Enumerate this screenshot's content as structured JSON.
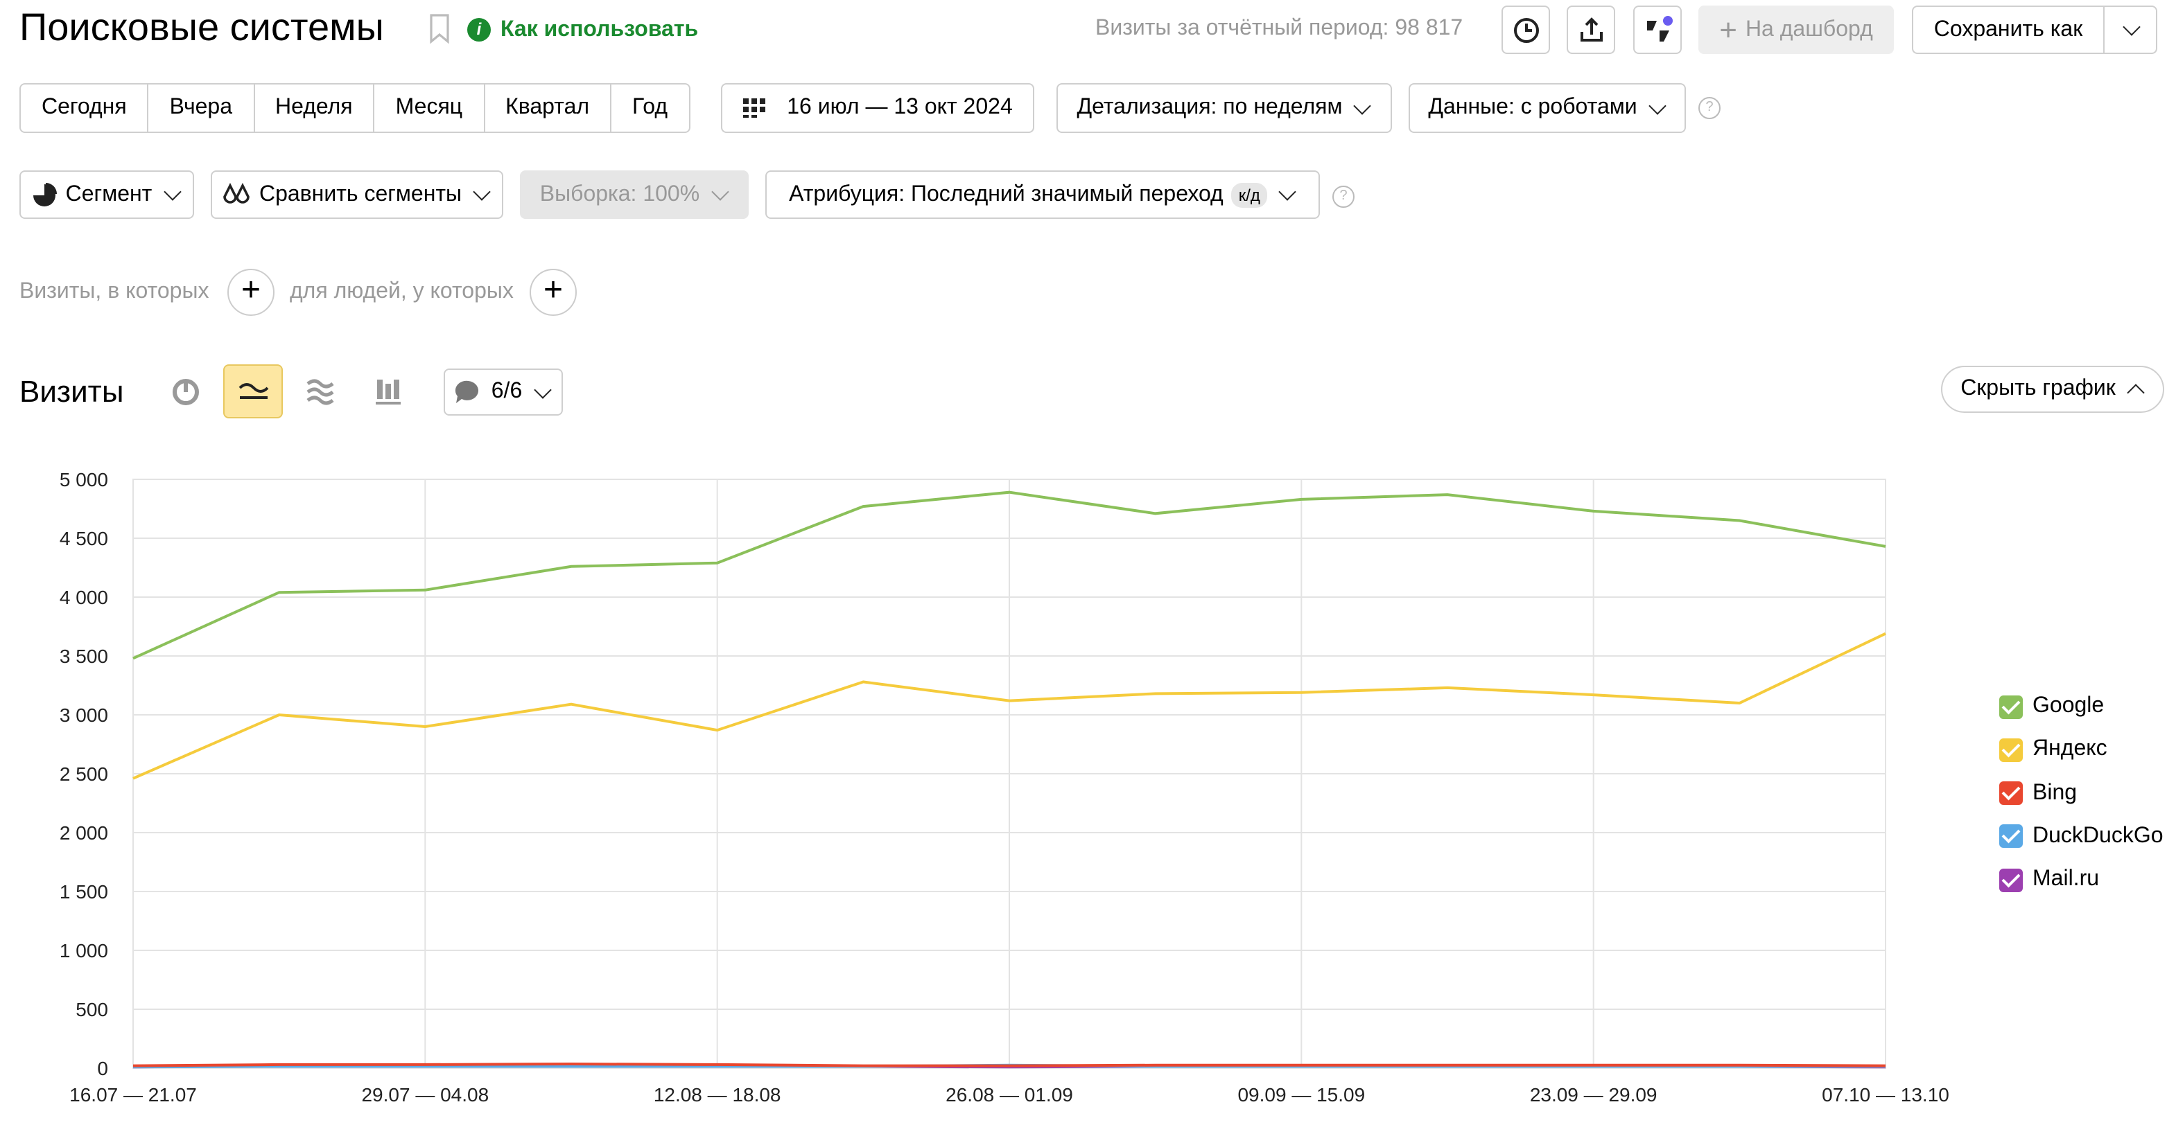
{
  "header": {
    "title": "Поисковые системы",
    "help": "Как использовать",
    "total": "Визиты за отчётный период: 98 817",
    "dashboard": "На дашборд",
    "save": "Сохранить как"
  },
  "periods": [
    "Сегодня",
    "Вчера",
    "Неделя",
    "Месяц",
    "Квартал",
    "Год"
  ],
  "filters": {
    "date": "16 июл — 13 окт 2024",
    "detail": "Детализация: по неделям",
    "robots": "Данные: с роботами",
    "segment": "Сегмент",
    "compare": "Сравнить сегменты",
    "sample": "Выборка: 100%",
    "attribution": "Атрибуция: Последний значимый переход",
    "attribution_badge": "к/д",
    "visits_where": "Визиты, в которых",
    "people_where": "для людей, у которых"
  },
  "report": {
    "title": "Визиты",
    "series_count": "6/6",
    "hide": "Скрыть график"
  },
  "chart_data": {
    "type": "line",
    "categories": [
      "16.07 — 21.07",
      null,
      "29.07 — 04.08",
      null,
      "12.08 — 18.08",
      null,
      "26.08 — 01.09",
      null,
      "09.09 — 15.09",
      null,
      "23.09 — 29.09",
      null,
      "07.10 — 13.10"
    ],
    "series": [
      {
        "name": "Google",
        "color": "#8bc05a",
        "values": [
          3480,
          4040,
          4060,
          4260,
          4290,
          4770,
          4890,
          4710,
          4830,
          4870,
          4730,
          4650,
          4430
        ]
      },
      {
        "name": "Яндекс",
        "color": "#f5cb3c",
        "values": [
          2460,
          3000,
          2900,
          3090,
          2870,
          3280,
          3120,
          3180,
          3190,
          3230,
          3170,
          3100,
          3690
        ]
      },
      {
        "name": "Bing",
        "color": "#e9472f",
        "values": [
          20,
          30,
          30,
          35,
          30,
          20,
          20,
          25,
          25,
          25,
          25,
          25,
          20
        ]
      },
      {
        "name": "DuckDuckGo",
        "color": "#5aa9e6",
        "values": [
          10,
          15,
          15,
          15,
          15,
          15,
          25,
          15,
          15,
          15,
          15,
          15,
          15
        ]
      },
      {
        "name": "Mail.ru",
        "color": "#9c3fb0",
        "values": [
          10,
          20,
          20,
          25,
          20,
          15,
          10,
          15,
          15,
          15,
          15,
          15,
          10
        ]
      }
    ],
    "ylim": [
      0,
      5000
    ],
    "yticks": [
      0,
      500,
      {
        "value": 1000,
        "label": "1 000"
      },
      {
        "value": 1500,
        "label": "1 500"
      },
      {
        "value": 2000,
        "label": "2 000"
      },
      {
        "value": 2500,
        "label": "2 500"
      },
      {
        "value": 3000,
        "label": "3 000"
      },
      {
        "value": 3500,
        "label": "3 500"
      },
      {
        "value": 4000,
        "label": "4 000"
      },
      {
        "value": 4500,
        "label": "4 500"
      },
      {
        "value": 5000,
        "label": "5 000"
      }
    ],
    "grid": true
  }
}
